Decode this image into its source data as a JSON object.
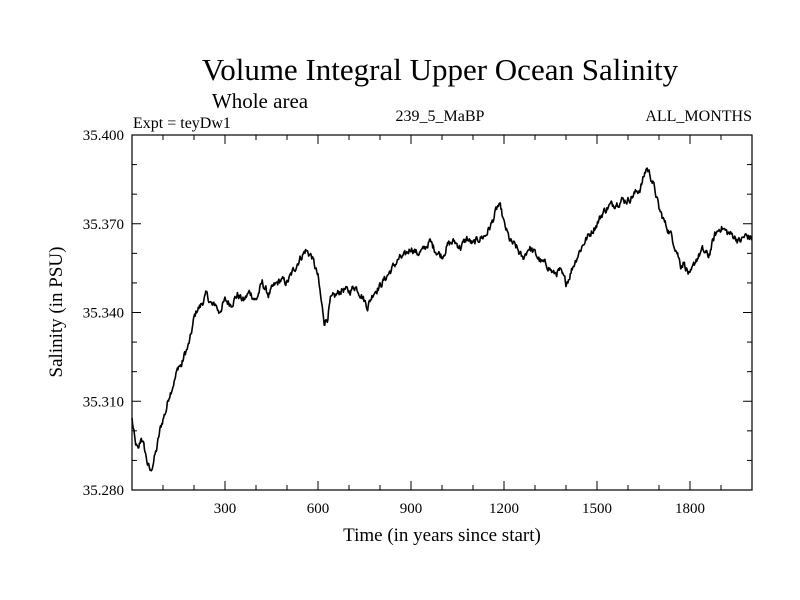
{
  "chart_data": {
    "type": "line",
    "title": "Volume Integral Upper Ocean Salinity",
    "subtitle": "Whole area",
    "left_label": "Expt = teyDw1",
    "center_label": "239_5_MaBP",
    "right_label": "ALL_MONTHS",
    "xlabel": "Time (in years since start)",
    "ylabel": "Salinity (in PSU)",
    "xlim": [
      0,
      2000
    ],
    "ylim": [
      35.28,
      35.4
    ],
    "x_ticks": [
      300,
      600,
      900,
      1200,
      1500,
      1800
    ],
    "x_tick_labels": [
      "300",
      "600",
      "900",
      "1200",
      "1500",
      "1800"
    ],
    "y_ticks": [
      35.28,
      35.31,
      35.34,
      35.37,
      35.4
    ],
    "y_tick_labels": [
      "35.280",
      "35.310",
      "35.340",
      "35.370",
      "35.400"
    ],
    "series": [
      {
        "name": "Salinity",
        "color": "#000000",
        "x": [
          0,
          10,
          20,
          30,
          40,
          50,
          60,
          70,
          80,
          90,
          100,
          110,
          120,
          130,
          140,
          150,
          160,
          170,
          180,
          190,
          200,
          210,
          220,
          240,
          260,
          270,
          280,
          300,
          320,
          340,
          360,
          380,
          400,
          420,
          440,
          460,
          480,
          500,
          520,
          540,
          560,
          580,
          600,
          610,
          620,
          630,
          640,
          660,
          680,
          700,
          720,
          740,
          760,
          780,
          800,
          820,
          840,
          860,
          880,
          900,
          920,
          940,
          960,
          980,
          1000,
          1020,
          1040,
          1060,
          1080,
          1100,
          1120,
          1140,
          1160,
          1180,
          1190,
          1200,
          1220,
          1240,
          1260,
          1280,
          1300,
          1320,
          1340,
          1360,
          1380,
          1400,
          1410,
          1420,
          1440,
          1460,
          1480,
          1500,
          1520,
          1540,
          1560,
          1580,
          1600,
          1620,
          1640,
          1660,
          1670,
          1680,
          1690,
          1700,
          1720,
          1740,
          1760,
          1770,
          1780,
          1800,
          1820,
          1840,
          1860,
          1880,
          1900,
          1920,
          1940,
          1960,
          1980,
          2000
        ],
        "values": [
          35.304,
          35.296,
          35.293,
          35.298,
          35.294,
          35.289,
          35.286,
          35.29,
          35.294,
          35.3,
          35.304,
          35.307,
          35.312,
          35.315,
          35.318,
          35.322,
          35.322,
          35.326,
          35.328,
          35.332,
          35.338,
          35.341,
          35.342,
          35.346,
          35.342,
          35.343,
          35.34,
          35.344,
          35.343,
          35.346,
          35.344,
          35.347,
          35.344,
          35.35,
          35.346,
          35.349,
          35.351,
          35.35,
          35.354,
          35.358,
          35.361,
          35.359,
          35.352,
          35.344,
          35.337,
          35.338,
          35.344,
          35.346,
          35.348,
          35.347,
          35.349,
          35.346,
          35.342,
          35.347,
          35.349,
          35.352,
          35.355,
          35.358,
          35.359,
          35.362,
          35.36,
          35.361,
          35.364,
          35.361,
          35.359,
          35.363,
          35.364,
          35.362,
          35.365,
          35.363,
          35.365,
          35.366,
          35.37,
          35.376,
          35.375,
          35.37,
          35.364,
          35.362,
          35.358,
          35.362,
          35.36,
          35.357,
          35.356,
          35.353,
          35.354,
          35.35,
          35.352,
          35.355,
          35.36,
          35.364,
          35.367,
          35.37,
          35.374,
          35.376,
          35.377,
          35.378,
          35.378,
          35.38,
          35.382,
          35.389,
          35.387,
          35.384,
          35.38,
          35.375,
          35.37,
          35.366,
          35.36,
          35.356,
          35.357,
          35.352,
          35.358,
          35.361,
          35.359,
          35.366,
          35.369,
          35.367,
          35.366,
          35.364,
          35.366,
          35.365
        ]
      }
    ]
  }
}
